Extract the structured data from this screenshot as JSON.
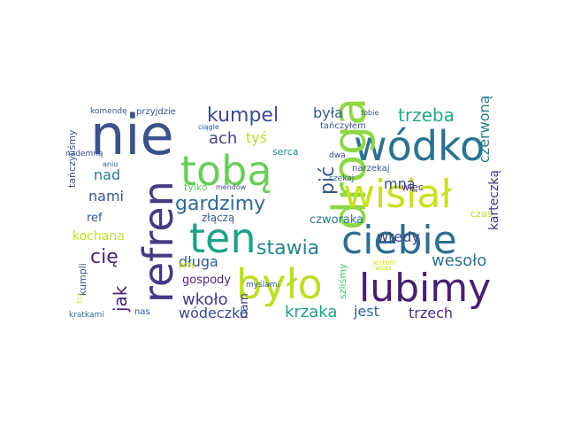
{
  "palette": {
    "dark": "#3b1f5f",
    "blue": "#3b528b",
    "teal": "#21908d",
    "green": "#5ec962",
    "yellow": "#c8e020"
  },
  "words": [
    {
      "text": "nie",
      "color": "#3b528b",
      "rot": false
    },
    {
      "text": "wódko",
      "color": "#2c728e",
      "rot": false
    },
    {
      "text": "droga",
      "color": "#8fd744",
      "rot": true
    },
    {
      "text": "refren",
      "color": "#443983",
      "rot": true
    },
    {
      "text": "tobą",
      "color": "#6ccd5a",
      "rot": false
    },
    {
      "text": "wisiał",
      "color": "#c8e020",
      "rot": false
    },
    {
      "text": "ten",
      "color": "#1fa187",
      "rot": false
    },
    {
      "text": "ciebie",
      "color": "#2d6f8e",
      "rot": false
    },
    {
      "text": "było",
      "color": "#bddf26",
      "rot": false
    },
    {
      "text": "lubimy",
      "color": "#481f70",
      "rot": false
    },
    {
      "text": "kumpel",
      "color": "#3e4989",
      "rot": false
    },
    {
      "text": "trzeba",
      "color": "#22a884",
      "rot": false
    },
    {
      "text": "była",
      "color": "#355f8d",
      "rot": false
    },
    {
      "text": "pić",
      "color": "#38598c",
      "rot": true
    },
    {
      "text": "czerwoną",
      "color": "#287c8e",
      "rot": true
    },
    {
      "text": "karteczką",
      "color": "#46337e",
      "rot": true
    },
    {
      "text": "gardzimy",
      "color": "#31688e",
      "rot": false
    },
    {
      "text": "stawia",
      "color": "#25858e",
      "rot": false
    },
    {
      "text": "jak",
      "color": "#482173",
      "rot": true
    },
    {
      "text": "cię",
      "color": "#482576",
      "rot": false
    },
    {
      "text": "nami",
      "color": "#3b528b",
      "rot": false
    },
    {
      "text": "nad",
      "color": "#2a788e",
      "rot": false
    },
    {
      "text": "ach",
      "color": "#414487",
      "rot": false
    },
    {
      "text": "tyś",
      "color": "#b5de2b",
      "rot": false
    },
    {
      "text": "mną",
      "color": "#3d4d8a",
      "rot": false
    },
    {
      "text": "wtedy",
      "color": "#3f4788",
      "rot": false
    },
    {
      "text": "wesoło",
      "color": "#2c728e",
      "rot": false
    },
    {
      "text": "długa",
      "color": "#365c8d",
      "rot": false
    },
    {
      "text": "wkoło",
      "color": "#453781",
      "rot": false
    },
    {
      "text": "krzaka",
      "color": "#1f9e89",
      "rot": false
    },
    {
      "text": "jest",
      "color": "#33638d",
      "rot": false
    },
    {
      "text": "trzech",
      "color": "#472d7b",
      "rot": false
    },
    {
      "text": "wódeczko",
      "color": "#3e4a89",
      "rot": false
    },
    {
      "text": "kochana",
      "color": "#c2df23",
      "rot": false
    },
    {
      "text": "ref",
      "color": "#3b528b",
      "rot": false
    },
    {
      "text": "gospody",
      "color": "#482878",
      "rot": false
    },
    {
      "text": "czworaka",
      "color": "#2a788e",
      "rot": false
    },
    {
      "text": "złączą",
      "color": "#3b528b",
      "rot": false
    },
    {
      "text": "tylko",
      "color": "#5ec962",
      "rot": false
    },
    {
      "text": "mendów",
      "color": "#3b528b",
      "rot": false
    },
    {
      "text": "serca",
      "color": "#21918c",
      "rot": false
    },
    {
      "text": "dwa",
      "color": "#3e4989",
      "rot": false
    },
    {
      "text": "narzekaj",
      "color": "#3b528b",
      "rot": false
    },
    {
      "text": "czekaj",
      "color": "#33638d",
      "rot": false
    },
    {
      "text": "więc",
      "color": "#482878",
      "rot": false
    },
    {
      "text": "czas",
      "color": "#b8de29",
      "rot": false
    },
    {
      "text": "wóda",
      "color": "#c2df23",
      "rot": false
    },
    {
      "text": "jestem",
      "color": "#d0e11c",
      "rot": false
    },
    {
      "text": "myślami",
      "color": "#3b528b",
      "rot": false
    },
    {
      "text": "nas",
      "color": "#3b528b",
      "rot": false
    },
    {
      "text": "kratkami",
      "color": "#2c728e",
      "rot": false
    },
    {
      "text": "nam",
      "color": "#414487",
      "rot": true
    },
    {
      "text": "szliśmy",
      "color": "#4ac16d",
      "rot": true
    },
    {
      "text": "kumpli",
      "color": "#3b528b",
      "rot": true
    },
    {
      "text": "312",
      "color": "#c8e020",
      "rot": true
    },
    {
      "text": "przy",
      "color": "#c8e020",
      "rot": false
    },
    {
      "text": "tańczyliśmy",
      "color": "#3b528b",
      "rot": true
    },
    {
      "text": "komendę",
      "color": "#3b528b",
      "rot": false
    },
    {
      "text": "przyjdzie",
      "color": "#3b528b",
      "rot": false
    },
    {
      "text": "ciągle",
      "color": "#3b528b",
      "rot": false
    },
    {
      "text": "tobie",
      "color": "#3b528b",
      "rot": false
    },
    {
      "text": "tańczyłem",
      "color": "#3b528b",
      "rot": false
    },
    {
      "text": "nademną",
      "color": "#3b528b",
      "rot": false
    },
    {
      "text": "aniu",
      "color": "#3b528b",
      "rot": false
    }
  ]
}
